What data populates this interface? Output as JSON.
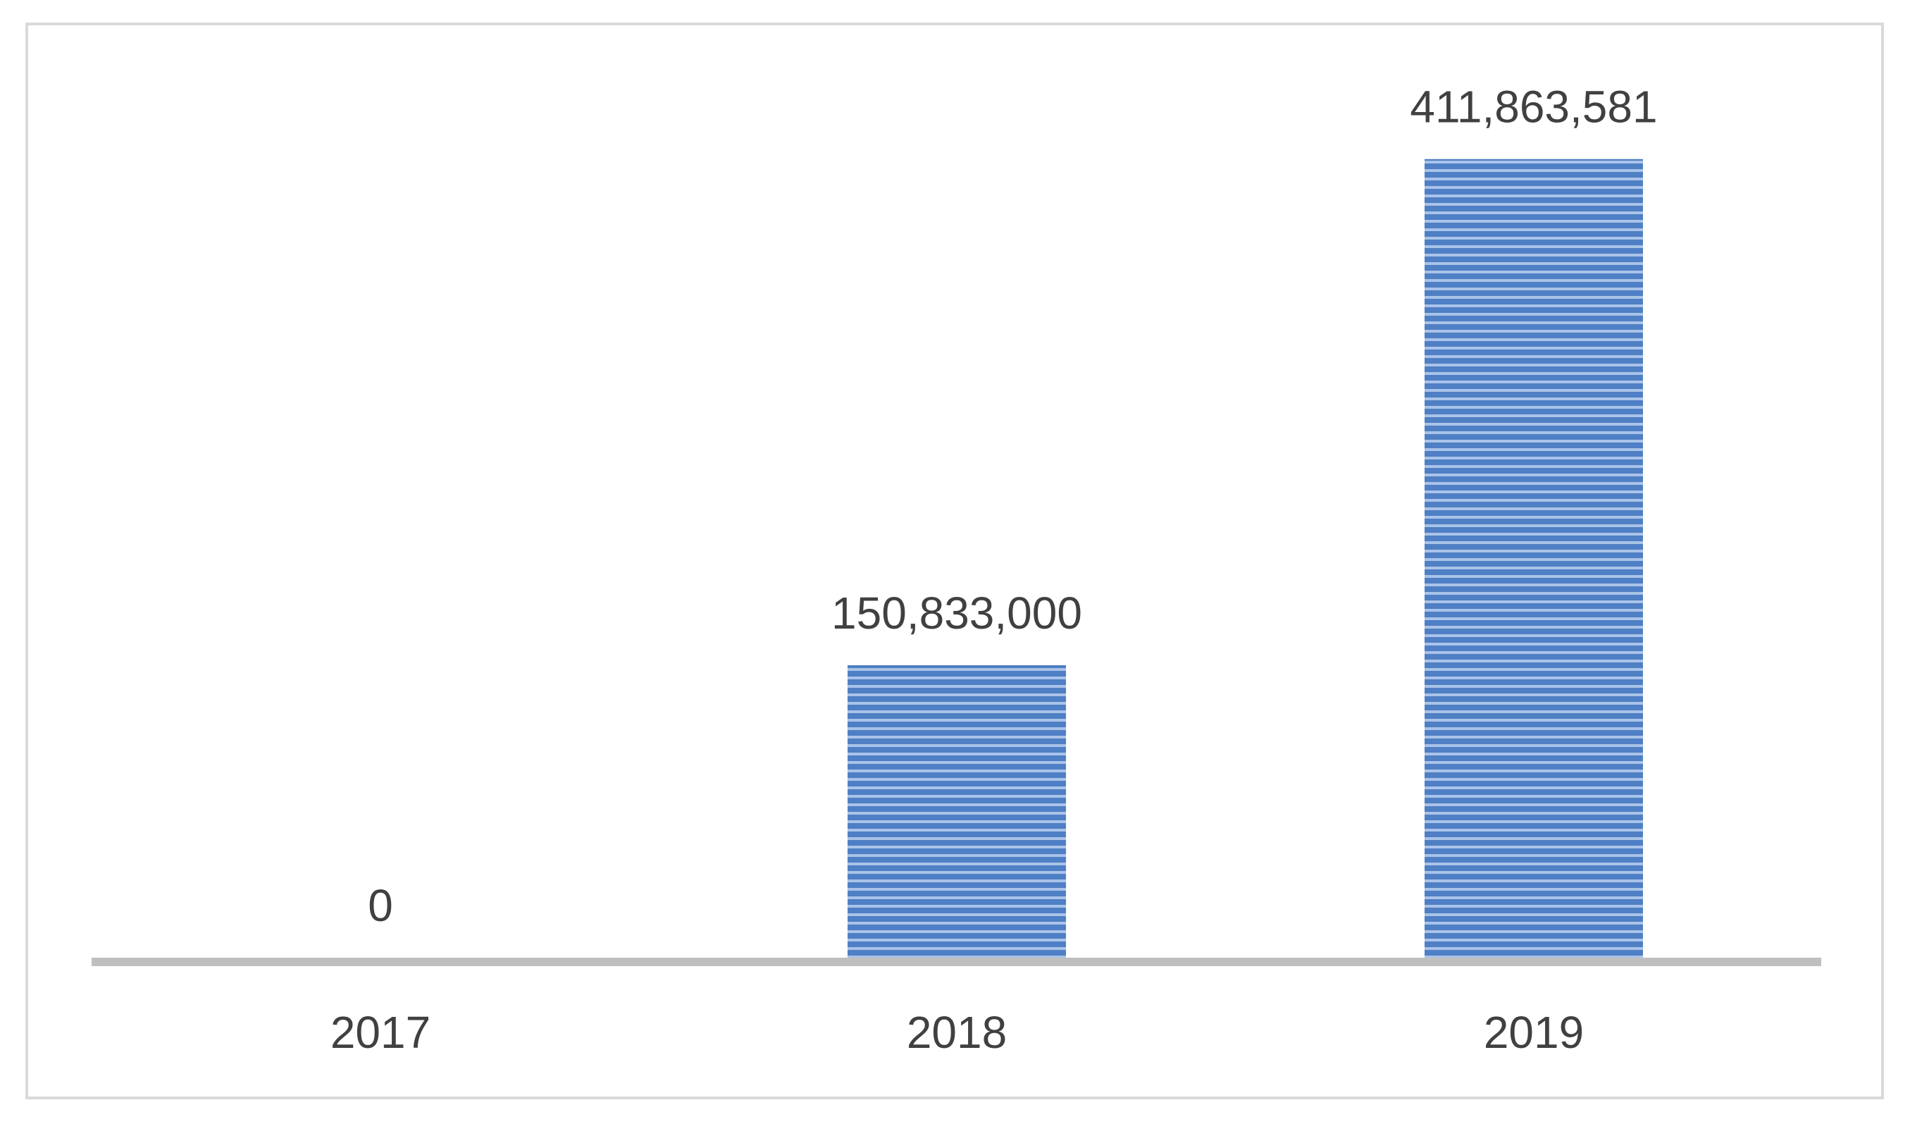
{
  "chart_data": {
    "type": "bar",
    "categories": [
      "2017",
      "2018",
      "2019"
    ],
    "values": [
      0,
      150833000,
      411863581
    ],
    "data_labels": [
      "0",
      "150,833,000",
      "411,863,581"
    ],
    "title": "",
    "xlabel": "",
    "ylabel": "",
    "ylim": [
      0,
      475000000
    ],
    "grid": false,
    "legend": "none",
    "colors": {
      "bar_fill": "#4f7fc4",
      "bar_stripe_light": "#a9c3e8",
      "axis": "#bfbfbf",
      "frame": "#d9d9d9",
      "label_text": "#404040"
    }
  }
}
